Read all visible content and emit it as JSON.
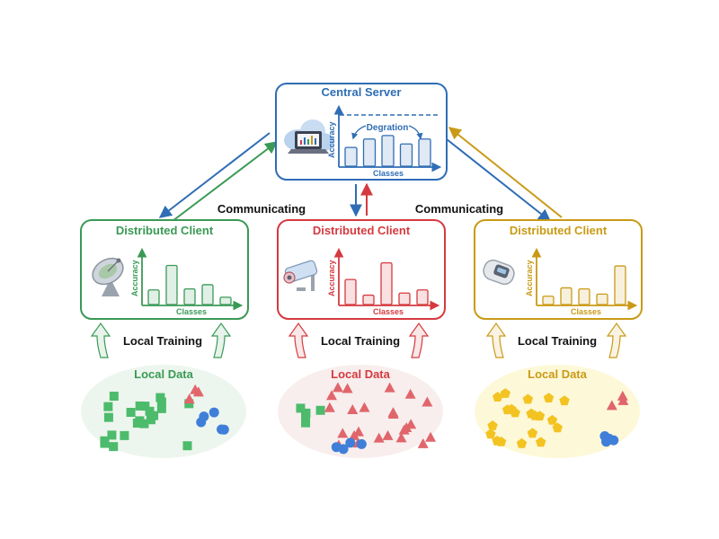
{
  "server": {
    "title": "Central Server",
    "y_axis": "Accuracy",
    "x_axis": "Classes",
    "annotation": "Degration",
    "accuracy": [
      0.38,
      0.55,
      0.62,
      0.45,
      0.55
    ],
    "color": "#2f6db5",
    "icon": "cloud-laptop-icon"
  },
  "communicating_label": "Communicating",
  "local_training_label": "Local Training",
  "clients": [
    {
      "title": "Distributed Client",
      "y_axis": "Accuracy",
      "x_axis": "Classes",
      "accuracy": [
        0.28,
        0.75,
        0.3,
        0.38,
        0.14
      ],
      "color": "#3a9a55",
      "light": "#e4f4e6",
      "icon": "satellite-dish-icon",
      "local_data_label": "Local Data",
      "data_mix": {
        "squares": 22,
        "triangles": 3,
        "circles": 5
      }
    },
    {
      "title": "Distributed Client",
      "y_axis": "Accuracy",
      "x_axis": "Classes",
      "accuracy": [
        0.48,
        0.18,
        0.8,
        0.22,
        0.28
      ],
      "color": "#d53a3f",
      "light": "#fbe3e3",
      "icon": "security-camera-icon",
      "local_data_label": "Local Data",
      "data_mix": {
        "squares": 5,
        "triangles": 24,
        "circles": 4
      }
    },
    {
      "title": "Distributed Client",
      "y_axis": "Accuracy",
      "x_axis": "Classes",
      "accuracy": [
        0.16,
        0.32,
        0.3,
        0.2,
        0.74
      ],
      "color": "#c99a16",
      "light": "#fdf6cf",
      "icon": "fitness-band-icon",
      "local_data_label": "Local Data",
      "data_mix": {
        "pentagons": 20,
        "triangles": 3,
        "circles": 4
      }
    }
  ],
  "colors": {
    "blue": "#2f6db5",
    "green": "#3a9a55",
    "red": "#d53a3f",
    "yellow": "#c99a16"
  }
}
